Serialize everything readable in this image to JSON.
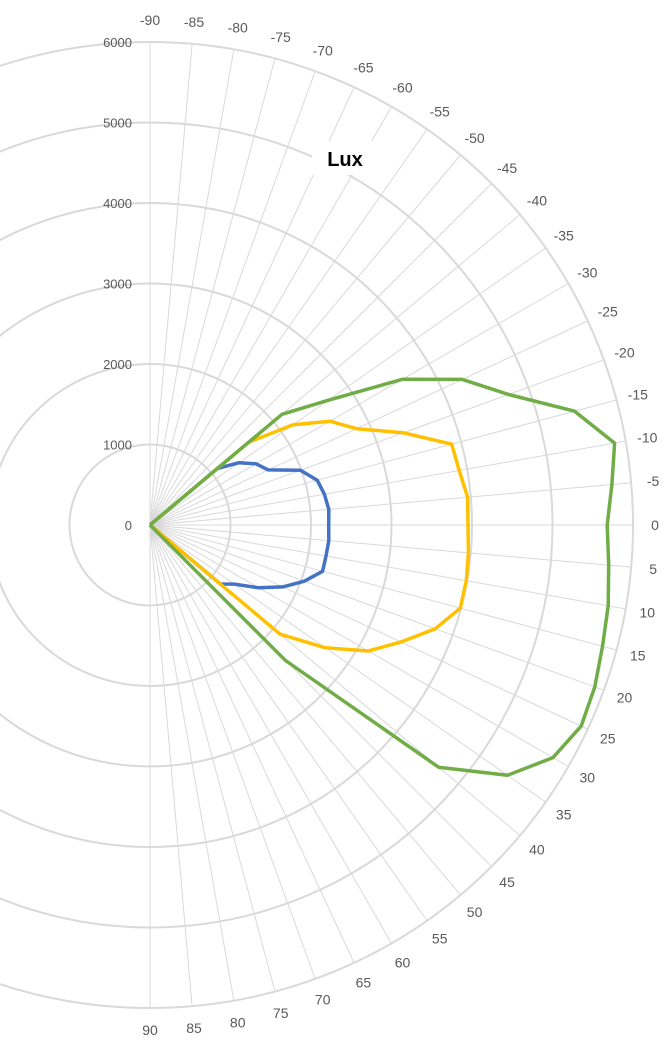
{
  "chart_data": {
    "type": "line",
    "subtype": "polar",
    "title": "Lux",
    "angle_unit": "degrees",
    "angles": [
      -90,
      -85,
      -80,
      -75,
      -70,
      -65,
      -60,
      -55,
      -50,
      -45,
      -40,
      -35,
      -30,
      -25,
      -20,
      -15,
      -10,
      -5,
      0,
      5,
      10,
      15,
      20,
      25,
      30,
      35,
      40,
      45,
      50,
      55,
      60,
      65,
      70,
      75,
      80,
      85,
      90
    ],
    "angle_labels": [
      "-90",
      "-85",
      "-80",
      "-75",
      "-70",
      "-65",
      "-60",
      "-55",
      "-50",
      "-45",
      "-40",
      "-35",
      "-30",
      "-25",
      "-20",
      "-15",
      "-10",
      "-5",
      "0",
      "5",
      "10",
      "15",
      "20",
      "25",
      "30",
      "35",
      "40",
      "45",
      "50",
      "55",
      "60",
      "65",
      "70",
      "75",
      "80",
      "85",
      "90"
    ],
    "radial_ticks": [
      0,
      1000,
      2000,
      3000,
      4000,
      5000,
      6000
    ],
    "radial_labels": [
      "0",
      "1000",
      "2000",
      "3000",
      "4000",
      "5000",
      "6000"
    ],
    "rlim": [
      0,
      6000
    ],
    "series": [
      {
        "color": "#4472C4",
        "angles": [
          -60,
          -55,
          -50,
          -45,
          -40,
          -35,
          -30,
          -25,
          -20,
          -15,
          -10,
          -5,
          0,
          5,
          10,
          15,
          20,
          25,
          30,
          35,
          40,
          45,
          50,
          55,
          60
        ],
        "values": [
          0,
          0,
          0,
          0,
          1090,
          1350,
          1520,
          1620,
          1990,
          2150,
          2200,
          2230,
          2220,
          2230,
          2220,
          2220,
          2040,
          1820,
          1560,
          1280,
          1140,
          0,
          0,
          0,
          0
        ]
      },
      {
        "color": "#FFC000",
        "angles": [
          -60,
          -55,
          -50,
          -45,
          -40,
          -35,
          -30,
          -25,
          -20,
          -15,
          -10,
          -5,
          0,
          5,
          10,
          15,
          20,
          25,
          30,
          35,
          40,
          45,
          50,
          55,
          60
        ],
        "values": [
          0,
          0,
          0,
          0,
          1600,
          2170,
          2580,
          2830,
          3350,
          3880,
          3900,
          3960,
          3950,
          3970,
          3990,
          3990,
          3770,
          3440,
          3130,
          2660,
          2110,
          0,
          0,
          0,
          0
        ]
      },
      {
        "color": "#70AD47",
        "angles": [
          -60,
          -55,
          -50,
          -45,
          -40,
          -35,
          -30,
          -25,
          -20,
          -15,
          -10,
          -5,
          0,
          5,
          10,
          15,
          20,
          25,
          30,
          35,
          40,
          45,
          50,
          55,
          60
        ],
        "values": [
          0,
          0,
          0,
          0,
          2140,
          2700,
          3620,
          4280,
          4740,
          5460,
          5860,
          5760,
          5680,
          5720,
          5780,
          5820,
          5880,
          5910,
          5780,
          5420,
          4680,
          2380,
          0,
          0,
          0
        ]
      }
    ],
    "grid": true,
    "legend": "none"
  }
}
